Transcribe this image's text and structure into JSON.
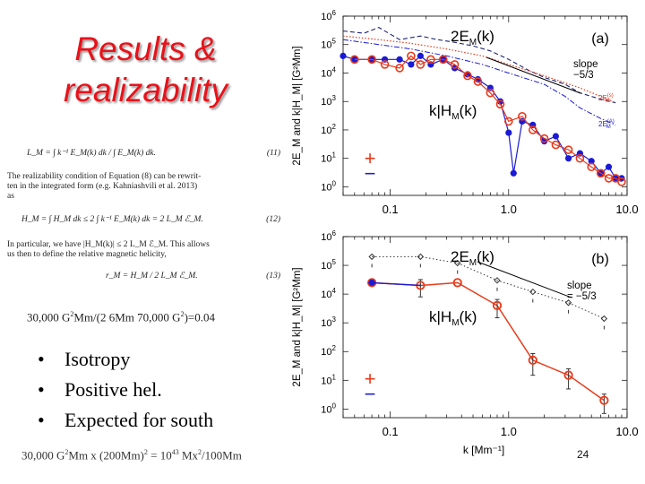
{
  "slide": {
    "title_lines": [
      "Results &",
      "realizability"
    ],
    "equations": [
      {
        "text": "L_M = ∫ k⁻¹ E_M(k) dk / ∫ E_M(k) dk.",
        "number": "(11)"
      },
      {
        "text": "The realizability condition of Equation (8) can be rewrit-"
      },
      {
        "text": "ten in the integrated form (e.g. Kahniashvili et al. 2013)"
      },
      {
        "text": "as"
      },
      {
        "text": "H_M = ∫ H_M dk ≤ 2 ∫ k⁻¹ E_M(k) dk = 2 L_M ℰ_M.",
        "number": "(12)"
      },
      {
        "text": "In particular, we have |H_M(k)| ≤ 2 L_M ℰ_M. This allows"
      },
      {
        "text": "us then to define the relative magnetic helicity,"
      },
      {
        "text": "r_M = H_M / 2 L_M ℰ_M.",
        "number": "(13)"
      }
    ],
    "calc1": {
      "a": "30,000 G",
      "b": "2",
      "c": "Mm/(2 6Mm 70,000 G",
      "d": "2",
      "e": ")=0.04"
    },
    "bullets": [
      "Isotropy",
      "Positive hel.",
      "Expected for south"
    ],
    "calc2": {
      "a": "30,000 G",
      "b": "2",
      "c": "Mm x (200Mm)",
      "d": "2",
      "e": " = 10",
      "f": "43",
      "g": " Mx",
      "h": "2",
      "i": "/100Mm"
    },
    "page_number": "24"
  },
  "chart_data": [
    {
      "type": "line",
      "panel_label": "(a)",
      "xscale": "log",
      "yscale": "log",
      "xlim": [
        0.04,
        10
      ],
      "ylim": [
        0.5,
        1000000
      ],
      "xticks": [
        {
          "v": 0.1,
          "label": "0.1"
        },
        {
          "v": 1,
          "label": "1.0"
        },
        {
          "v": 10,
          "label": "10.0"
        }
      ],
      "yticks": [
        {
          "v": 1,
          "b": "10",
          "e": "0"
        },
        {
          "v": 10,
          "b": "10",
          "e": "1"
        },
        {
          "v": 100,
          "b": "10",
          "e": "2"
        },
        {
          "v": 1000,
          "b": "10",
          "e": "3"
        },
        {
          "v": 10000,
          "b": "10",
          "e": "4"
        },
        {
          "v": 100000,
          "b": "10",
          "e": "5"
        },
        {
          "v": 1000000,
          "b": "10",
          "e": "6"
        }
      ],
      "ylabel": "2E_M and k|H_M|  [G²Mm]",
      "annotations": {
        "em": "2E",
        "em_sub": "M",
        "em_arg": "(k)",
        "hm": "k|H",
        "hm_sub": "M",
        "hm_arg": "(k)",
        "slope": "slope",
        "slope_val": "−5/3",
        "plus": "+",
        "minus": "−",
        "e_s": "2E",
        "e_s_sup": "(s)",
        "e_s_sub": "M",
        "e_a": "2E",
        "e_a_sup": "(A)",
        "e_a_sub": "M"
      },
      "colors": {
        "red": "#e8391a",
        "blue": "#1a1ad6",
        "navy": "#1c2470"
      },
      "series": [
        {
          "name": "2E_M(k)",
          "style": "dashed-navy",
          "x": [
            0.04,
            0.06,
            0.08,
            0.12,
            0.18,
            0.25,
            0.35,
            0.5,
            0.7,
            1.0,
            1.5,
            2,
            3,
            4,
            6,
            8
          ],
          "y": [
            300000,
            250000,
            400000,
            150000,
            200000,
            150000,
            120000,
            90000,
            60000,
            30000,
            12000,
            7000,
            4000,
            2000,
            1200,
            900
          ]
        },
        {
          "name": "2E_M(s)",
          "style": "dotted-red",
          "x": [
            0.04,
            0.08,
            0.15,
            0.3,
            0.6,
            1,
            2,
            4,
            6,
            8
          ],
          "y": [
            200000,
            150000,
            110000,
            70000,
            40000,
            20000,
            8000,
            3000,
            1500,
            900
          ]
        },
        {
          "name": "2E_M(A)",
          "style": "dashdot-blue",
          "x": [
            0.04,
            0.08,
            0.15,
            0.3,
            0.6,
            1,
            2,
            3,
            4,
            6,
            8
          ],
          "y": [
            150000,
            100000,
            70000,
            40000,
            20000,
            10000,
            4000,
            1500,
            600,
            250,
            150
          ]
        },
        {
          "name": "k|H_M(k)|",
          "style": "blue-markers",
          "x": [
            0.04,
            0.05,
            0.07,
            0.09,
            0.12,
            0.15,
            0.18,
            0.22,
            0.28,
            0.35,
            0.45,
            0.55,
            0.7,
            0.85,
            1.0,
            1.1,
            1.3,
            1.6,
            2.0,
            2.5,
            3.2,
            4,
            5,
            6,
            7,
            8,
            9
          ],
          "y": [
            40000,
            30000,
            30000,
            30000,
            30000,
            20000,
            40000,
            20000,
            30000,
            15000,
            9000,
            6000,
            3000,
            1000,
            80,
            3,
            200,
            150,
            40,
            60,
            10,
            15,
            8,
            3,
            5,
            2,
            2
          ]
        },
        {
          "name": "k|H_M(k)| (red)",
          "style": "red-circles",
          "x": [
            0.05,
            0.07,
            0.09,
            0.12,
            0.15,
            0.18,
            0.22,
            0.28,
            0.35,
            0.45,
            0.55,
            0.7,
            0.85,
            1.0,
            1.3,
            1.6,
            2.0,
            2.5,
            3.2,
            4,
            5,
            6,
            7,
            8,
            9
          ],
          "y": [
            30000,
            30000,
            20000,
            15000,
            40000,
            20000,
            30000,
            30000,
            20000,
            8000,
            5000,
            2000,
            800,
            200,
            300,
            100,
            50,
            30,
            20,
            10,
            5,
            3,
            2,
            2,
            1.5
          ]
        }
      ]
    },
    {
      "type": "line",
      "panel_label": "(b)",
      "xscale": "log",
      "yscale": "log",
      "xlim": [
        0.04,
        10
      ],
      "ylim": [
        0.5,
        1000000
      ],
      "xticks": [
        {
          "v": 0.1,
          "label": "0.1"
        },
        {
          "v": 1,
          "label": "1.0"
        },
        {
          "v": 10,
          "label": "10.0"
        }
      ],
      "yticks": [
        {
          "v": 1,
          "b": "10",
          "e": "0"
        },
        {
          "v": 10,
          "b": "10",
          "e": "1"
        },
        {
          "v": 100,
          "b": "10",
          "e": "2"
        },
        {
          "v": 1000,
          "b": "10",
          "e": "3"
        },
        {
          "v": 10000,
          "b": "10",
          "e": "4"
        },
        {
          "v": 100000,
          "b": "10",
          "e": "5"
        },
        {
          "v": 1000000,
          "b": "10",
          "e": "6"
        }
      ],
      "xlabel": "k  [Mm⁻¹]",
      "ylabel": "2E_M and k|H_M|  [G²Mm]",
      "annotations": {
        "em": "2E",
        "em_sub": "M",
        "em_arg": "(k)",
        "hm": "k|H",
        "hm_sub": "M",
        "hm_arg": "(k)",
        "slope": "slope",
        "slope_val": "= −5/3",
        "plus": "+",
        "minus": "−"
      },
      "colors": {
        "red": "#e8391a",
        "blue": "#1a1ad6",
        "navy": "#333333"
      },
      "series": [
        {
          "name": "2E_M(k)",
          "style": "dotted-diamonds",
          "x": [
            0.07,
            0.18,
            0.37,
            0.8,
            1.6,
            3.2,
            6.4
          ],
          "y": [
            200000,
            200000,
            120000,
            30000,
            12000,
            5000,
            1400
          ]
        },
        {
          "name": "k|H_M(k)|",
          "style": "red-circles-line",
          "x": [
            0.07,
            0.18,
            0.37,
            0.8,
            1.6,
            3.2,
            6.4
          ],
          "y": [
            25000,
            20000,
            25000,
            4000,
            50,
            15,
            2
          ],
          "yerr": [
            0,
            12000,
            0,
            2500,
            35,
            10,
            1.3
          ]
        },
        {
          "name": "negative",
          "style": "blue-dot",
          "x": [
            0.07
          ],
          "y": [
            25000
          ]
        }
      ]
    }
  ]
}
